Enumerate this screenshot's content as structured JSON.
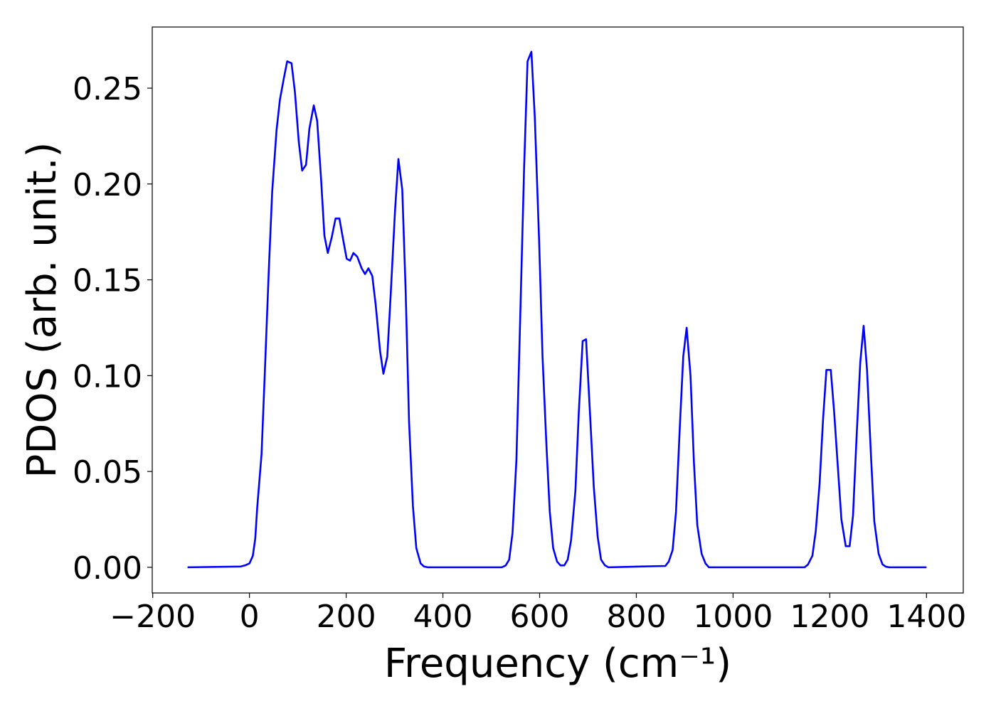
{
  "chart_data": {
    "type": "line",
    "xlabel": "Frequency (cm⁻¹)",
    "ylabel": "PDOS (arb. unit.)",
    "color": "#0000ff",
    "x": [
      -128,
      -18,
      -9,
      0,
      7,
      12,
      16,
      25,
      32,
      40,
      47,
      56,
      63,
      71,
      78,
      87,
      94,
      102,
      109,
      117,
      124,
      133,
      140,
      148,
      155,
      162,
      170,
      178,
      186,
      193,
      201,
      208,
      215,
      223,
      232,
      239,
      246,
      254,
      261,
      270,
      277,
      285,
      292,
      301,
      308,
      316,
      323,
      330,
      338,
      345,
      354,
      361,
      369,
      522,
      530,
      537,
      544,
      552,
      559,
      568,
      575,
      583,
      590,
      599,
      606,
      614,
      621,
      628,
      636,
      643,
      651,
      658,
      665,
      674,
      681,
      689,
      696,
      704,
      712,
      720,
      727,
      735,
      742,
      860,
      867,
      875,
      882,
      890,
      897,
      904,
      912,
      919,
      926,
      935,
      943,
      950,
      1148,
      1155,
      1164,
      1171,
      1179,
      1186,
      1193,
      1202,
      1209,
      1217,
      1224,
      1233,
      1241,
      1248,
      1255,
      1263,
      1270,
      1277,
      1285,
      1292,
      1301,
      1309,
      1316,
      1323,
      1400
    ],
    "values": [
      0,
      0.0004,
      0.001,
      0.002,
      0.006,
      0.015,
      0.031,
      0.059,
      0.103,
      0.155,
      0.196,
      0.228,
      0.244,
      0.255,
      0.264,
      0.263,
      0.248,
      0.222,
      0.207,
      0.21,
      0.229,
      0.241,
      0.233,
      0.203,
      0.173,
      0.164,
      0.172,
      0.182,
      0.182,
      0.172,
      0.161,
      0.16,
      0.164,
      0.162,
      0.156,
      0.153,
      0.156,
      0.152,
      0.137,
      0.113,
      0.101,
      0.11,
      0.142,
      0.186,
      0.213,
      0.197,
      0.144,
      0.076,
      0.032,
      0.01,
      0.002,
      0.0004,
      0,
      0,
      0.001,
      0.004,
      0.018,
      0.056,
      0.122,
      0.209,
      0.264,
      0.269,
      0.235,
      0.17,
      0.11,
      0.064,
      0.029,
      0.01,
      0.003,
      0.001,
      0.001,
      0.004,
      0.014,
      0.04,
      0.081,
      0.118,
      0.119,
      0.081,
      0.042,
      0.016,
      0.004,
      0.001,
      0,
      0.0007,
      0.003,
      0.009,
      0.029,
      0.074,
      0.11,
      0.125,
      0.1,
      0.055,
      0.022,
      0.007,
      0.002,
      0,
      0,
      0.0015,
      0.006,
      0.019,
      0.044,
      0.077,
      0.103,
      0.103,
      0.081,
      0.051,
      0.025,
      0.011,
      0.011,
      0.027,
      0.066,
      0.107,
      0.126,
      0.103,
      0.059,
      0.024,
      0.007,
      0.0015,
      0.0003,
      0,
      0
    ],
    "xlim": [
      -201,
      1476
    ],
    "ylim": [
      -0.0134,
      0.2819
    ],
    "xticks": [
      {
        "value": -200,
        "label": "−200"
      },
      0,
      200,
      400,
      600,
      800,
      1000,
      1200,
      1400
    ],
    "yticks": [
      {
        "value": 0,
        "label": "0.00"
      },
      {
        "value": 0.05,
        "label": "0.05"
      },
      {
        "value": 0.1,
        "label": "0.10"
      },
      {
        "value": 0.15,
        "label": "0.15"
      },
      {
        "value": 0.2,
        "label": "0.20"
      },
      {
        "value": 0.25,
        "label": "0.25"
      }
    ],
    "grid": false
  }
}
